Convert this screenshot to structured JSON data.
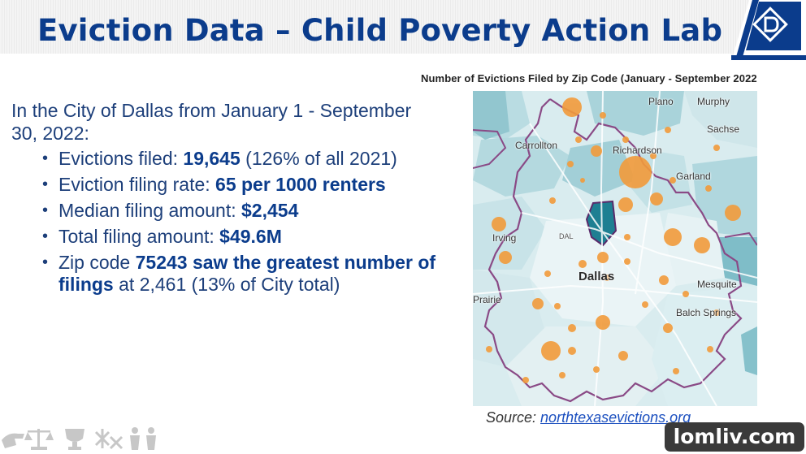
{
  "header": {
    "title": "Eviction Data – Child Poverty Action Lab",
    "accent_color": "#0b3c8c"
  },
  "map": {
    "caption": "Number of Evictions Filed by Zip Code (January - September 2022",
    "labels": {
      "plano": "Plano",
      "murphy": "Murphy",
      "sachse": "Sachse",
      "carrollton": "Carrollton",
      "richardson": "Richardson",
      "garland": "Garland",
      "irving": "Irving",
      "dal": "DAL",
      "dallas": "Dallas",
      "mesquite": "Mesquite",
      "prairie": "Prairie",
      "balch_springs": "Balch Springs"
    }
  },
  "content": {
    "intro": "In the City of Dallas from January 1 - September 30, 2022:",
    "bullets": {
      "b1_pre": " Evictions filed: ",
      "b1_bold": "19,645",
      "b1_post": " (126% of all 2021)",
      "b2_pre": "Eviction filing rate: ",
      "b2_bold": "65 per 1000 renters",
      "b3_pre": " Median filing amount: ",
      "b3_bold": "$2,454",
      "b4_pre": "Total filing amount: ",
      "b4_bold": "$49.6M",
      "b5_pre": "Zip code ",
      "b5_bold": "75243 saw the greatest number of filings",
      "b5_post": " at 2,461 (13% of City total)"
    }
  },
  "source": {
    "label": "Source: ",
    "link_text": "northtexasevictions.org"
  },
  "watermark": "lomliv.com"
}
